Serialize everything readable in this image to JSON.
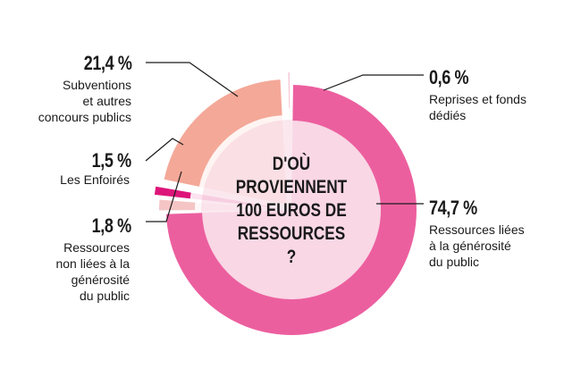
{
  "chart_data": {
    "type": "pie",
    "title": "D'OÙ PROVIENNENT 100 EUROS DE RESSOURCES ?",
    "title_lines": [
      "D'OÙ",
      "PROVIENNENT",
      "100 EUROS DE",
      "RESSOURCES",
      "?"
    ],
    "unit": "%",
    "slices": [
      {
        "label": "Ressources liées à la générosité du public",
        "value": 74.7,
        "value_text": "74,7 %",
        "label_lines": [
          "Ressources liées",
          "à la générosité",
          "du public"
        ],
        "color": "#ec5f9f"
      },
      {
        "label": "Ressources non liées à la générosité du public",
        "value": 1.8,
        "value_text": "1,8 %",
        "label_lines": [
          "Ressources",
          "non liées à la",
          "générosité",
          "du public"
        ],
        "color": "#f5c5c5"
      },
      {
        "label": "Les Enfoirés",
        "value": 1.5,
        "value_text": "1,5 %",
        "label_lines": [
          "Les Enfoirés"
        ],
        "color": "#dd157a"
      },
      {
        "label": "Subventions et autres concours publics",
        "value": 21.4,
        "value_text": "21,4 %",
        "label_lines": [
          "Subventions",
          "et autres",
          "concours publics"
        ],
        "color": "#f4a898"
      },
      {
        "label": "Reprises et fonds dédiés",
        "value": 0.6,
        "value_text": "0,6 %",
        "label_lines": [
          "Reprises et fonds",
          "dédiés"
        ],
        "color": "#f6c3d3"
      }
    ],
    "center_color": "#fbe8ef",
    "leader_color": "#1a1a1a"
  }
}
